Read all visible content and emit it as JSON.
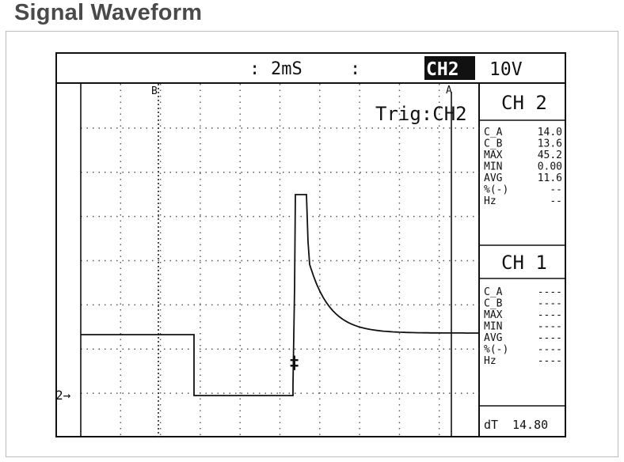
{
  "page": {
    "title": "Signal Waveform"
  },
  "scope": {
    "timebase_prefix": ":",
    "timebase": "2mS",
    "timebase_suffix": ":",
    "active_channel": "CH2",
    "volts_per_div": "10V",
    "trigger_label": "Trig:CH2",
    "cursor_a_marker": "A",
    "cursor_b_marker": "B",
    "ground_marker": "2→",
    "trigger_marker": "‡"
  },
  "ch2": {
    "header": "CH 2",
    "rows": [
      {
        "label": "C_A",
        "value": "14.0"
      },
      {
        "label": "C_B",
        "value": "13.6"
      },
      {
        "label": "MAX",
        "value": "45.2"
      },
      {
        "label": "MIN",
        "value": "0.00"
      },
      {
        "label": "AVG",
        "value": "11.6"
      },
      {
        "label": "%(-)",
        "value": "--"
      },
      {
        "label": "Hz",
        "value": "--"
      }
    ]
  },
  "ch1": {
    "header": "CH 1",
    "rows": [
      {
        "label": "C_A",
        "value": "----"
      },
      {
        "label": "C_B",
        "value": "----"
      },
      {
        "label": "MAX",
        "value": "----"
      },
      {
        "label": "MIN",
        "value": "----"
      },
      {
        "label": "AVG",
        "value": "----"
      },
      {
        "label": "%(-)",
        "value": "----"
      },
      {
        "label": "Hz",
        "value": "----"
      }
    ]
  },
  "dt": {
    "label": "dT",
    "value": "14.80"
  },
  "colors": {
    "trace": "#111111",
    "grid": "#555555",
    "background": "#ffffff"
  }
}
